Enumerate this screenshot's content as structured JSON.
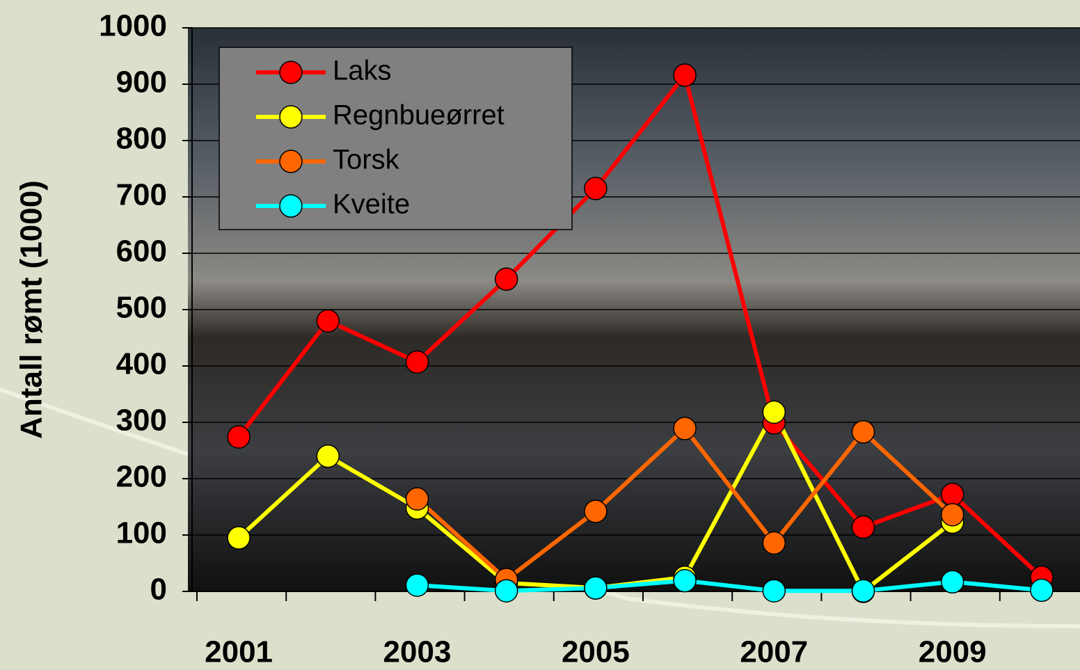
{
  "chart_data": {
    "type": "line",
    "y_label": "Antall rømt (1000)",
    "categories": [
      "2001",
      null,
      "2003",
      null,
      "2005",
      null,
      "2007",
      null,
      "2009",
      null
    ],
    "series": [
      {
        "name": "Laks",
        "color": "#ff0000",
        "values": [
          274,
          480,
          407,
          554,
          715,
          916,
          299,
          114,
          172,
          25
        ]
      },
      {
        "name": "Regnbueørret",
        "color": "#ffff00",
        "values": [
          95,
          240,
          148,
          15,
          6,
          25,
          318,
          0,
          123,
          null
        ]
      },
      {
        "name": "Torsk",
        "color": "#ff6600",
        "values": [
          null,
          null,
          164,
          21,
          142,
          289,
          86,
          283,
          136,
          null
        ]
      },
      {
        "name": "Kveite",
        "color": "#00ffff",
        "values": [
          null,
          null,
          11,
          1,
          6,
          19,
          1,
          1,
          17,
          2
        ]
      }
    ],
    "ylim": [
      0,
      1000
    ],
    "yticks": [
      0,
      100,
      200,
      300,
      400,
      500,
      600,
      700,
      800,
      900,
      1000
    ],
    "grid": true
  }
}
